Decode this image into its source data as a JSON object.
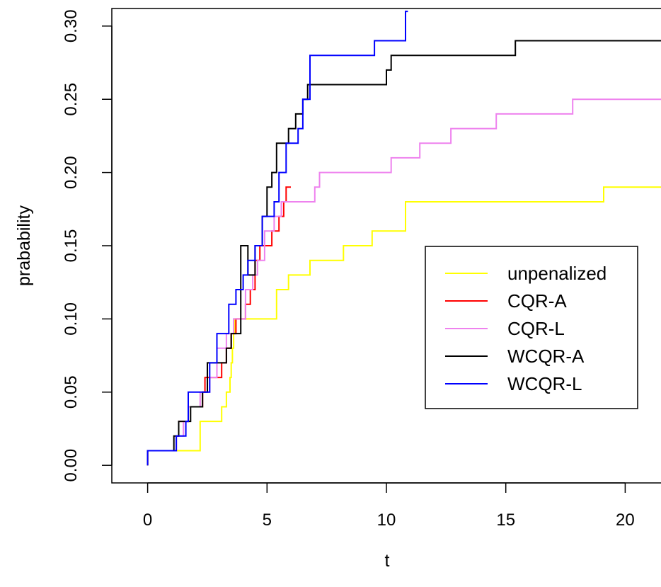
{
  "chart_data": {
    "type": "line",
    "xlabel": "t",
    "ylabel": "prabability",
    "xlim": [
      -1.5,
      21.5
    ],
    "ylim": [
      -0.012,
      0.312
    ],
    "xticks": [
      "0",
      "5",
      "10",
      "15",
      "20"
    ],
    "yticks": [
      "0.00",
      "0.05",
      "0.10",
      "0.15",
      "0.20",
      "0.25",
      "0.30"
    ],
    "grid": false,
    "legend_position": "right",
    "series": [
      {
        "name": "unpenalized",
        "color": "#ffff00",
        "x": [
          0,
          0,
          2.2,
          2.2,
          3.1,
          3.1,
          3.3,
          3.3,
          3.45,
          3.45,
          3.5,
          3.5,
          3.55,
          3.55,
          3.6,
          3.6,
          3.65,
          3.65,
          3.8,
          3.8,
          4.0,
          4.0,
          5.4,
          5.4,
          5.9,
          5.9,
          6.8,
          6.8,
          8.2,
          8.2,
          9.4,
          9.4,
          10.8,
          10.8,
          19.1,
          19.1,
          21.5
        ],
        "y": [
          0.0,
          0.01,
          0.01,
          0.03,
          0.03,
          0.04,
          0.04,
          0.05,
          0.05,
          0.06,
          0.06,
          0.07,
          0.07,
          0.08,
          0.08,
          0.09,
          0.09,
          0.1,
          0.1,
          0.1,
          0.1,
          0.1,
          0.1,
          0.12,
          0.12,
          0.13,
          0.13,
          0.14,
          0.14,
          0.15,
          0.15,
          0.16,
          0.16,
          0.18,
          0.18,
          0.19,
          0.19
        ]
      },
      {
        "name": "CQR-A",
        "color": "#ff0000",
        "x": [
          0,
          0,
          1.2,
          1.2,
          1.3,
          1.3,
          1.6,
          1.6,
          1.7,
          1.7,
          2.1,
          2.1,
          2.3,
          2.3,
          2.4,
          2.4,
          3.1,
          3.1,
          3.3,
          3.3,
          3.5,
          3.5,
          3.7,
          3.7,
          4.1,
          4.1,
          4.3,
          4.3,
          4.5,
          4.5,
          4.7,
          4.7,
          4.9,
          4.9,
          5.2,
          5.2,
          5.5,
          5.5,
          5.7,
          5.7,
          5.8,
          5.8,
          6.0
        ],
        "y": [
          0.0,
          0.01,
          0.01,
          0.02,
          0.02,
          0.03,
          0.03,
          0.03,
          0.03,
          0.04,
          0.04,
          0.04,
          0.04,
          0.05,
          0.05,
          0.06,
          0.06,
          0.07,
          0.07,
          0.08,
          0.08,
          0.09,
          0.09,
          0.1,
          0.1,
          0.11,
          0.11,
          0.12,
          0.12,
          0.14,
          0.14,
          0.15,
          0.15,
          0.15,
          0.15,
          0.16,
          0.16,
          0.17,
          0.17,
          0.18,
          0.18,
          0.19,
          0.19
        ]
      },
      {
        "name": "CQR-L",
        "color": "#ee82ee",
        "x": [
          0,
          0,
          1.2,
          1.2,
          1.5,
          1.5,
          1.7,
          1.7,
          2.2,
          2.2,
          2.6,
          2.6,
          2.9,
          2.9,
          3.3,
          3.3,
          3.6,
          3.6,
          4.1,
          4.1,
          4.4,
          4.4,
          4.6,
          4.6,
          4.9,
          4.9,
          5.3,
          5.3,
          5.6,
          5.6,
          7.0,
          7.0,
          7.2,
          7.2,
          10.2,
          10.2,
          11.4,
          11.4,
          12.7,
          12.7,
          14.6,
          14.6,
          17.8,
          17.8,
          21.5
        ],
        "y": [
          0.0,
          0.01,
          0.01,
          0.02,
          0.02,
          0.03,
          0.03,
          0.04,
          0.04,
          0.05,
          0.05,
          0.06,
          0.06,
          0.08,
          0.08,
          0.09,
          0.09,
          0.1,
          0.1,
          0.12,
          0.12,
          0.13,
          0.13,
          0.14,
          0.14,
          0.16,
          0.16,
          0.17,
          0.17,
          0.18,
          0.18,
          0.19,
          0.19,
          0.2,
          0.2,
          0.21,
          0.21,
          0.22,
          0.22,
          0.23,
          0.23,
          0.24,
          0.24,
          0.25,
          0.25
        ]
      },
      {
        "name": "WCQR-A",
        "color": "#000000",
        "x": [
          0,
          0,
          1.1,
          1.1,
          1.3,
          1.3,
          1.8,
          1.8,
          2.3,
          2.3,
          2.5,
          2.5,
          3.3,
          3.3,
          3.5,
          3.5,
          3.9,
          3.9,
          4.2,
          4.2,
          4.5,
          4.5,
          4.8,
          4.8,
          5.0,
          5.0,
          5.2,
          5.2,
          5.4,
          5.4,
          5.9,
          5.9,
          6.2,
          6.2,
          6.5,
          6.5,
          6.7,
          6.7,
          6.9,
          6.9,
          10.0,
          10.0,
          10.2,
          10.2,
          15.4,
          15.4,
          21.5
        ],
        "y": [
          0.0,
          0.01,
          0.01,
          0.02,
          0.02,
          0.03,
          0.03,
          0.04,
          0.04,
          0.05,
          0.05,
          0.07,
          0.07,
          0.08,
          0.08,
          0.09,
          0.09,
          0.15,
          0.15,
          0.13,
          0.13,
          0.15,
          0.15,
          0.17,
          0.17,
          0.19,
          0.19,
          0.2,
          0.2,
          0.22,
          0.22,
          0.23,
          0.23,
          0.24,
          0.24,
          0.25,
          0.25,
          0.26,
          0.26,
          0.26,
          0.26,
          0.27,
          0.27,
          0.28,
          0.28,
          0.29,
          0.29
        ]
      },
      {
        "name": "WCQR-L",
        "color": "#0000ff",
        "x": [
          0,
          0,
          1.2,
          1.2,
          1.6,
          1.6,
          1.7,
          1.7,
          2.6,
          2.6,
          2.9,
          2.9,
          3.4,
          3.4,
          3.7,
          3.7,
          4.0,
          4.0,
          4.2,
          4.2,
          4.5,
          4.5,
          4.8,
          4.8,
          5.3,
          5.3,
          5.5,
          5.5,
          5.8,
          5.8,
          6.3,
          6.3,
          6.5,
          6.5,
          6.8,
          6.8,
          7.0,
          7.0,
          9.5,
          9.5,
          10.8,
          10.8,
          10.9
        ],
        "y": [
          0.0,
          0.01,
          0.01,
          0.02,
          0.02,
          0.03,
          0.03,
          0.05,
          0.05,
          0.07,
          0.07,
          0.09,
          0.09,
          0.11,
          0.11,
          0.12,
          0.12,
          0.13,
          0.13,
          0.14,
          0.14,
          0.15,
          0.15,
          0.17,
          0.17,
          0.18,
          0.18,
          0.2,
          0.2,
          0.22,
          0.22,
          0.23,
          0.23,
          0.25,
          0.25,
          0.28,
          0.28,
          0.28,
          0.28,
          0.29,
          0.29,
          0.31,
          0.31
        ]
      }
    ]
  }
}
